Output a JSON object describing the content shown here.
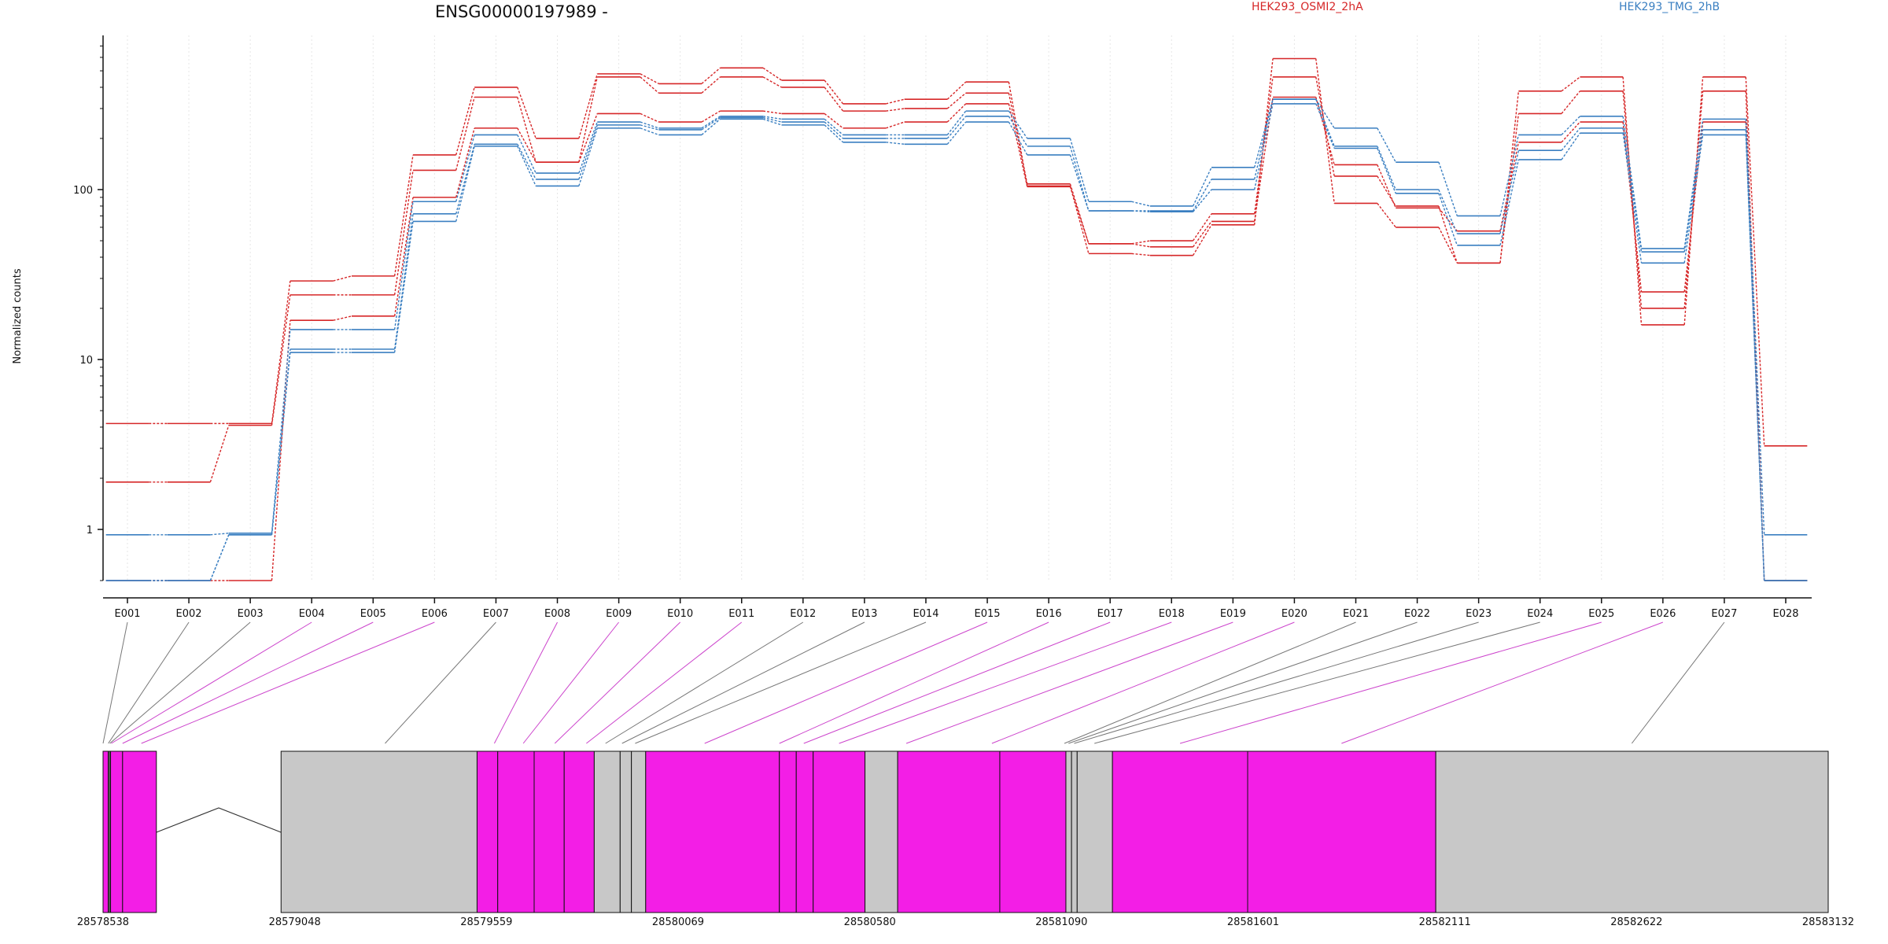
{
  "chart_data": {
    "type": "line",
    "title": "ENSG00000197989 -",
    "ylabel": "Normalized counts",
    "yscale": "log",
    "ylim": [
      0.5,
      750
    ],
    "yticks": [
      1,
      10,
      100
    ],
    "grid": "vertical dotted",
    "legend_placement": "top",
    "categories": [
      "E001",
      "E002",
      "E003",
      "E004",
      "E005",
      "E006",
      "E007",
      "E008",
      "E009",
      "E010",
      "E011",
      "E012",
      "E013",
      "E014",
      "E015",
      "E016",
      "E017",
      "E018",
      "E019",
      "E020",
      "E021",
      "E022",
      "E023",
      "E024",
      "E025",
      "E026",
      "E027",
      "E028"
    ],
    "legend": [
      {
        "name": "HEK293_OSMI2_2hA",
        "color": "#d62728"
      },
      {
        "name": "HEK293_TMG_2hB",
        "color": "#3a7fc1"
      }
    ],
    "series": [
      {
        "name": "HEK293_OSMI2_2hA rep1",
        "group": 0,
        "values": [
          4.2,
          4.2,
          4.2,
          29,
          31,
          160,
          400,
          200,
          480,
          420,
          520,
          440,
          320,
          340,
          430,
          105,
          42,
          41,
          62,
          590,
          83,
          60,
          37,
          380,
          460,
          16,
          460,
          3.1
        ]
      },
      {
        "name": "HEK293_OSMI2_2hA rep2",
        "group": 0,
        "values": [
          1.9,
          1.9,
          4.1,
          24,
          24,
          130,
          350,
          145,
          460,
          370,
          460,
          400,
          290,
          300,
          370,
          108,
          48,
          50,
          72,
          460,
          120,
          80,
          37,
          280,
          380,
          20,
          380,
          0.5
        ]
      },
      {
        "name": "HEK293_OSMI2_2hA rep3",
        "group": 0,
        "values": [
          0.5,
          0.5,
          0.5,
          17,
          18,
          90,
          230,
          145,
          280,
          250,
          290,
          280,
          230,
          250,
          320,
          104,
          48,
          46,
          65,
          350,
          140,
          78,
          57,
          190,
          250,
          25,
          250,
          0.5
        ]
      },
      {
        "name": "HEK293_TMG_2hB rep1",
        "group": 1,
        "values": [
          0.93,
          0.93,
          0.95,
          15,
          15,
          85,
          210,
          125,
          250,
          230,
          270,
          260,
          210,
          210,
          290,
          200,
          85,
          80,
          135,
          340,
          230,
          145,
          70,
          210,
          270,
          45,
          260,
          0.93
        ]
      },
      {
        "name": "HEK293_TMG_2hB rep2",
        "group": 1,
        "values": [
          0.5,
          0.5,
          0.93,
          11.5,
          11.5,
          72,
          185,
          115,
          240,
          225,
          265,
          250,
          200,
          200,
          270,
          180,
          75,
          75,
          115,
          340,
          180,
          100,
          55,
          170,
          230,
          43,
          225,
          0.5
        ]
      },
      {
        "name": "HEK293_TMG_2hB rep3",
        "group": 1,
        "values": [
          0.5,
          0.5,
          0.93,
          11,
          11,
          65,
          180,
          105,
          230,
          210,
          260,
          240,
          190,
          185,
          250,
          160,
          75,
          74,
          100,
          320,
          175,
          95,
          47,
          150,
          215,
          37,
          210,
          0.5
        ]
      }
    ],
    "gene_model": {
      "coordinate_labels": [
        "28578538",
        "28579048",
        "28579559",
        "28580069",
        "28580580",
        "28581090",
        "28581601",
        "28582111",
        "28582622",
        "28583132"
      ],
      "start": 28578538,
      "end": 28583132,
      "exons": [
        {
          "start": 28578538,
          "end": 28578552,
          "color": "#f31ee6"
        },
        {
          "start": 28578552,
          "end": 28578555,
          "color": "#c8c8c8"
        },
        {
          "start": 28578555,
          "end": 28578558,
          "color": "#c8c8c8"
        },
        {
          "start": 28578558,
          "end": 28578590,
          "color": "#f31ee6"
        },
        {
          "start": 28578590,
          "end": 28578680,
          "color": "#f31ee6"
        },
        {
          "start": 28579012,
          "end": 28579534,
          "color": "#c8c8c8"
        },
        {
          "start": 28579534,
          "end": 28579589,
          "color": "#f31ee6"
        },
        {
          "start": 28579589,
          "end": 28579686,
          "color": "#f31ee6"
        },
        {
          "start": 28579686,
          "end": 28579766,
          "color": "#f31ee6"
        },
        {
          "start": 28579766,
          "end": 28579846,
          "color": "#f31ee6"
        },
        {
          "start": 28579846,
          "end": 28579915,
          "color": "#c8c8c8"
        },
        {
          "start": 28579915,
          "end": 28579945,
          "color": "#c8c8c8"
        },
        {
          "start": 28579945,
          "end": 28579983,
          "color": "#c8c8c8"
        },
        {
          "start": 28579983,
          "end": 28580339,
          "color": "#f31ee6"
        },
        {
          "start": 28580339,
          "end": 28580384,
          "color": "#f31ee6"
        },
        {
          "start": 28580384,
          "end": 28580429,
          "color": "#f31ee6"
        },
        {
          "start": 28580429,
          "end": 28580567,
          "color": "#f31ee6"
        },
        {
          "start": 28580567,
          "end": 28580654,
          "color": "#c8c8c8"
        },
        {
          "start": 28580654,
          "end": 28580926,
          "color": "#f31ee6"
        },
        {
          "start": 28580926,
          "end": 28581102,
          "color": "#f31ee6"
        },
        {
          "start": 28581102,
          "end": 28581117,
          "color": "#c8c8c8"
        },
        {
          "start": 28581117,
          "end": 28581132,
          "color": "#c8c8c8"
        },
        {
          "start": 28581132,
          "end": 28581226,
          "color": "#c8c8c8"
        },
        {
          "start": 28581226,
          "end": 28581586,
          "color": "#f31ee6"
        },
        {
          "start": 28581586,
          "end": 28582087,
          "color": "#f31ee6"
        },
        {
          "start": 28582087,
          "end": 28583132,
          "color": "#c8c8c8"
        }
      ],
      "connector_targets": [
        28578538,
        28578552,
        28578556,
        28578560,
        28578590,
        28578640,
        28579289,
        28579580,
        28579657,
        28579741,
        28579825,
        28579876,
        28579920,
        28579955,
        28580140,
        28580339,
        28580404,
        28580498,
        28580677,
        28580905,
        28581098,
        28581109,
        28581124,
        28581178,
        28581406,
        28581836,
        28582609
      ],
      "connector_colors": [
        "#777777",
        "#777777",
        "#777777",
        "#cc44cc",
        "#cc44cc",
        "#cc44cc",
        "#777777",
        "#cc44cc",
        "#cc44cc",
        "#cc44cc",
        "#cc44cc",
        "#777777",
        "#777777",
        "#777777",
        "#cc44cc",
        "#cc44cc",
        "#cc44cc",
        "#cc44cc",
        "#cc44cc",
        "#cc44cc",
        "#777777",
        "#777777",
        "#777777",
        "#777777",
        "#cc44cc",
        "#cc44cc",
        "#777777"
      ]
    }
  }
}
